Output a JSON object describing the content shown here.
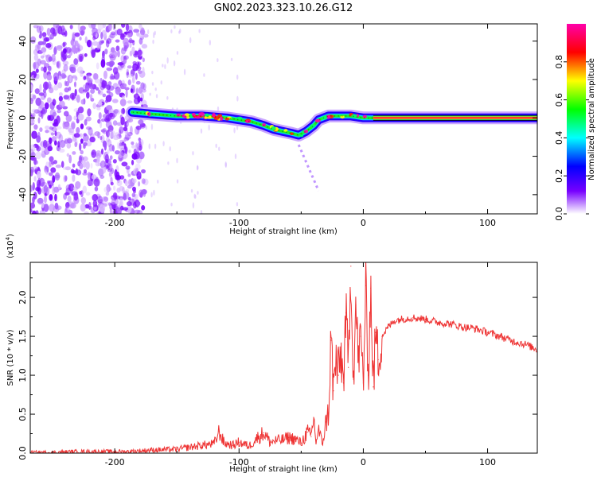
{
  "title": "GN02.2023.323.10.26.G12",
  "chart_data": [
    {
      "type": "heatmap",
      "xlabel": "Height of straight line (km)",
      "ylabel": "Frequency (Hz)",
      "xlim": [
        -268,
        140
      ],
      "ylim": [
        -50,
        49
      ],
      "xticks": [
        -200,
        -100,
        0,
        100
      ],
      "xtick_labels": [
        "-200",
        "-100",
        "0",
        "100"
      ],
      "yticks": [
        -40,
        -20,
        0,
        20,
        40
      ],
      "ytick_labels": [
        "-40",
        "-20",
        "0",
        "20",
        "40"
      ],
      "noise_region_x": [
        -268,
        -175
      ],
      "ridge": {
        "x": [
          -186,
          -170,
          -150,
          -130,
          -110,
          -100,
          -90,
          -80,
          -72,
          -65,
          -58,
          -52,
          -46,
          -40,
          -36,
          -32,
          -28,
          -20,
          -10,
          0,
          8,
          140
        ],
        "y": [
          3,
          2,
          1,
          1,
          0,
          -1,
          -2,
          -4,
          -6,
          -7,
          -8,
          -9,
          -7,
          -4,
          -1,
          0,
          1,
          1,
          1,
          0,
          0,
          0
        ]
      },
      "tail": {
        "x": [
          -52,
          -48,
          -44,
          -40,
          -36
        ],
        "y": [
          -14,
          -20,
          -26,
          -32,
          -38
        ]
      },
      "colorbar": {
        "label": "Normalized spectral amplitude",
        "range": [
          0,
          1
        ],
        "ticks": [
          0.0,
          0.2,
          0.4,
          0.6,
          0.8
        ],
        "tick_labels": [
          "0.0",
          "0.2",
          "0.4",
          "0.6",
          "0.8"
        ],
        "colors": [
          "#ffffff",
          "#7700ff",
          "#0000ff",
          "#00ffff",
          "#00ff00",
          "#ffff00",
          "#ff0000",
          "#ff00aa"
        ]
      }
    },
    {
      "type": "line",
      "xlabel": "Height of straight line (km)",
      "ylabel": "SNR (10 * v/v)",
      "yscale_label": "(x10",
      "yscale_exp": "4",
      "xlim": [
        -268,
        140
      ],
      "ylim": [
        0,
        2.45
      ],
      "xticks": [
        -200,
        -100,
        0,
        100
      ],
      "xtick_labels": [
        "-200",
        "-100",
        "0",
        "100"
      ],
      "yticks": [
        0.0,
        0.5,
        1.0,
        1.5,
        2.0
      ],
      "ytick_labels": [
        "0.0",
        "0.5",
        "1.0",
        "1.5",
        "2.0"
      ],
      "color": "#ee3333",
      "series": [
        {
          "x": [
            -268,
            -250,
            -230,
            -210,
            -190,
            -170,
            -150,
            -130,
            -120,
            -116,
            -112,
            -105,
            -100,
            -92,
            -85,
            -80,
            -75,
            -70,
            -65,
            -60,
            -55,
            -50,
            -45,
            -42,
            -40,
            -38,
            -36,
            -33,
            -30,
            -28,
            -26,
            -24,
            -22,
            -20,
            -18,
            -16,
            -14,
            -12,
            -10,
            -8,
            -6,
            -4,
            -2,
            0,
            2,
            4,
            6,
            8,
            10,
            12,
            15,
            20,
            25,
            30,
            40,
            50,
            60,
            70,
            80,
            90,
            100,
            110,
            120,
            130,
            140
          ],
          "y": [
            0.01,
            0.01,
            0.02,
            0.02,
            0.02,
            0.04,
            0.05,
            0.1,
            0.12,
            0.28,
            0.13,
            0.1,
            0.14,
            0.09,
            0.2,
            0.26,
            0.14,
            0.16,
            0.17,
            0.2,
            0.18,
            0.13,
            0.27,
            0.21,
            0.46,
            0.14,
            0.3,
            0.12,
            0.4,
            0.52,
            1.45,
            0.8,
            1.2,
            1.0,
            1.3,
            0.9,
            1.8,
            1.1,
            2.4,
            0.95,
            1.9,
            1.2,
            1.5,
            0.9,
            2.15,
            1.0,
            2.12,
            0.85,
            1.55,
            1.2,
            1.5,
            1.62,
            1.7,
            1.72,
            1.74,
            1.72,
            1.68,
            1.66,
            1.62,
            1.6,
            1.55,
            1.5,
            1.44,
            1.4,
            1.33
          ]
        }
      ]
    }
  ]
}
